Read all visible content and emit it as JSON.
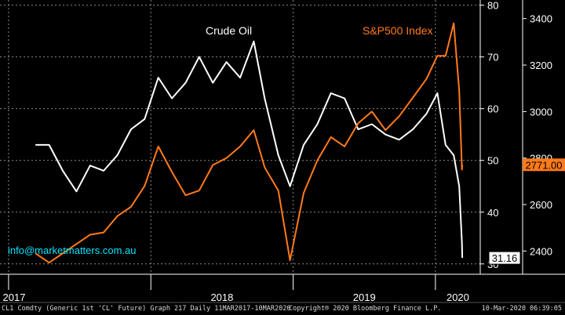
{
  "chart_data": {
    "type": "line",
    "xlabel": "",
    "x_ticks": [
      "2017",
      "2018",
      "2019",
      "2020"
    ],
    "grid": true,
    "series": [
      {
        "name": "Crude Oil",
        "axis": "right",
        "color": "#ffffff",
        "last_value_label": "31.16",
        "x": [
          "2017-03-11",
          "2017-04-15",
          "2017-05-20",
          "2017-06-24",
          "2017-07-29",
          "2017-09-02",
          "2017-10-07",
          "2017-11-11",
          "2017-12-16",
          "2018-01-20",
          "2018-02-24",
          "2018-03-31",
          "2018-05-05",
          "2018-06-09",
          "2018-07-14",
          "2018-08-18",
          "2018-09-22",
          "2018-10-20",
          "2018-11-24",
          "2018-12-24",
          "2019-01-28",
          "2019-03-04",
          "2019-04-08",
          "2019-05-13",
          "2019-06-17",
          "2019-07-22",
          "2019-08-26",
          "2019-09-30",
          "2019-11-04",
          "2019-12-09",
          "2020-01-06",
          "2020-01-27",
          "2020-02-17",
          "2020-03-02",
          "2020-03-09",
          "2020-03-10"
        ],
        "values": [
          53,
          53,
          48,
          44,
          49,
          48,
          51,
          56,
          58,
          66,
          62,
          65,
          70,
          65,
          69,
          66,
          73,
          62,
          51,
          45,
          53,
          57,
          63,
          62,
          56,
          57,
          55,
          54,
          56,
          59,
          63,
          53,
          51,
          45,
          34,
          31.16
        ]
      },
      {
        "name": "S&P500 Index",
        "axis": "left",
        "color": "#ff7a1a",
        "last_value_label": "2771.00",
        "x": [
          "2017-03-11",
          "2017-04-15",
          "2017-05-20",
          "2017-06-24",
          "2017-07-29",
          "2017-09-02",
          "2017-10-07",
          "2017-11-11",
          "2017-12-16",
          "2018-01-20",
          "2018-02-24",
          "2018-03-31",
          "2018-05-05",
          "2018-06-09",
          "2018-07-14",
          "2018-08-18",
          "2018-09-22",
          "2018-10-20",
          "2018-11-24",
          "2018-12-24",
          "2019-01-28",
          "2019-03-04",
          "2019-04-08",
          "2019-05-13",
          "2019-06-17",
          "2019-07-22",
          "2019-08-26",
          "2019-09-30",
          "2019-11-04",
          "2019-12-09",
          "2020-01-06",
          "2020-01-27",
          "2020-02-17",
          "2020-03-02",
          "2020-03-09",
          "2020-03-10"
        ],
        "values": [
          2390,
          2350,
          2390,
          2430,
          2470,
          2480,
          2550,
          2590,
          2680,
          2850,
          2740,
          2640,
          2660,
          2770,
          2800,
          2850,
          2920,
          2760,
          2660,
          2360,
          2650,
          2790,
          2890,
          2850,
          2950,
          3000,
          2920,
          2980,
          3060,
          3140,
          3240,
          3240,
          3380,
          3090,
          2750,
          2771.0
        ]
      }
    ],
    "y_left": {
      "ticks": [
        2400,
        2600,
        2800,
        3000,
        3200,
        3400
      ],
      "range": [
        2300,
        3480
      ]
    },
    "y_right": {
      "ticks": [
        30,
        40,
        50,
        60,
        70,
        80
      ],
      "range": [
        28,
        81
      ]
    },
    "x_range": [
      "2016-12-10",
      "2020-04-25"
    ],
    "annotations": [
      "info@marketmatters.com.au"
    ]
  },
  "footer": {
    "left": "CL1 Comdty (Generic 1st 'CL' Future) Graph 217  Daily 11MAR2017-10MAR2020",
    "center": "Copyright® 2020 Bloomberg Finance L.P.",
    "right": "10-Mar-2020 06:39:05"
  },
  "colors": {
    "background": "#000000",
    "grid": "#8a8a8a",
    "oil": "#ffffff",
    "sp500": "#ff7a1a",
    "axis_text": "#ffffff",
    "annotation": "#00e5ff"
  }
}
